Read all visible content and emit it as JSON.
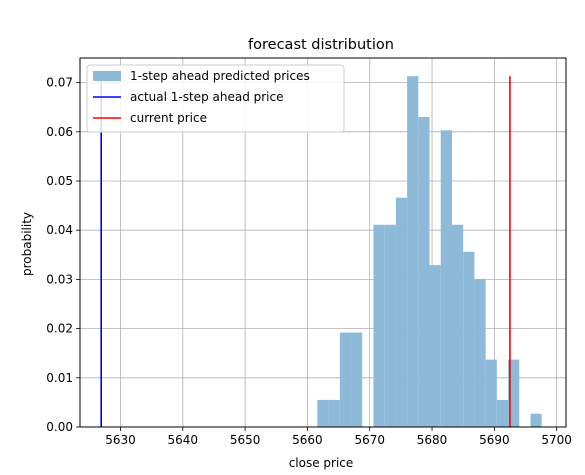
{
  "chart_data": {
    "type": "bar",
    "title": "forecast distribution",
    "xlabel": "close price",
    "ylabel": "probability",
    "xlim": [
      5623.5,
      5701.5
    ],
    "ylim": [
      0,
      0.075
    ],
    "xticks": [
      5630,
      5640,
      5650,
      5660,
      5670,
      5680,
      5690,
      5700
    ],
    "yticks": [
      0.0,
      0.01,
      0.02,
      0.03,
      0.04,
      0.05,
      0.06,
      0.07
    ],
    "ytick_labels": [
      "0.00",
      "0.01",
      "0.02",
      "0.03",
      "0.04",
      "0.05",
      "0.06",
      "0.07"
    ],
    "grid": true,
    "legend_position": "top-left",
    "histogram": {
      "name": "1-step ahead predicted prices",
      "color": "#8ebad9",
      "bin_width": 1.8,
      "bins": [
        {
          "x0": 5661.6,
          "value": 0.0055
        },
        {
          "x0": 5663.4,
          "value": 0.0055
        },
        {
          "x0": 5665.2,
          "value": 0.0192
        },
        {
          "x0": 5667.0,
          "value": 0.0192
        },
        {
          "x0": 5670.6,
          "value": 0.0411
        },
        {
          "x0": 5672.4,
          "value": 0.0411
        },
        {
          "x0": 5674.2,
          "value": 0.0466
        },
        {
          "x0": 5676.0,
          "value": 0.0713
        },
        {
          "x0": 5677.8,
          "value": 0.063
        },
        {
          "x0": 5679.6,
          "value": 0.0329
        },
        {
          "x0": 5681.4,
          "value": 0.0603
        },
        {
          "x0": 5683.2,
          "value": 0.0411
        },
        {
          "x0": 5685.0,
          "value": 0.0356
        },
        {
          "x0": 5686.8,
          "value": 0.0301
        },
        {
          "x0": 5688.6,
          "value": 0.0137
        },
        {
          "x0": 5690.4,
          "value": 0.0055
        },
        {
          "x0": 5692.2,
          "value": 0.0137
        },
        {
          "x0": 5695.8,
          "value": 0.0027
        }
      ]
    },
    "vlines": [
      {
        "name": "actual 1-step ahead price",
        "x": 5626.9,
        "ymin": 0,
        "ymax": 0.0713,
        "color": "#0000ff"
      },
      {
        "name": "current price",
        "x": 5692.5,
        "ymin": 0,
        "ymax": 0.0713,
        "color": "#ff0000"
      }
    ]
  }
}
